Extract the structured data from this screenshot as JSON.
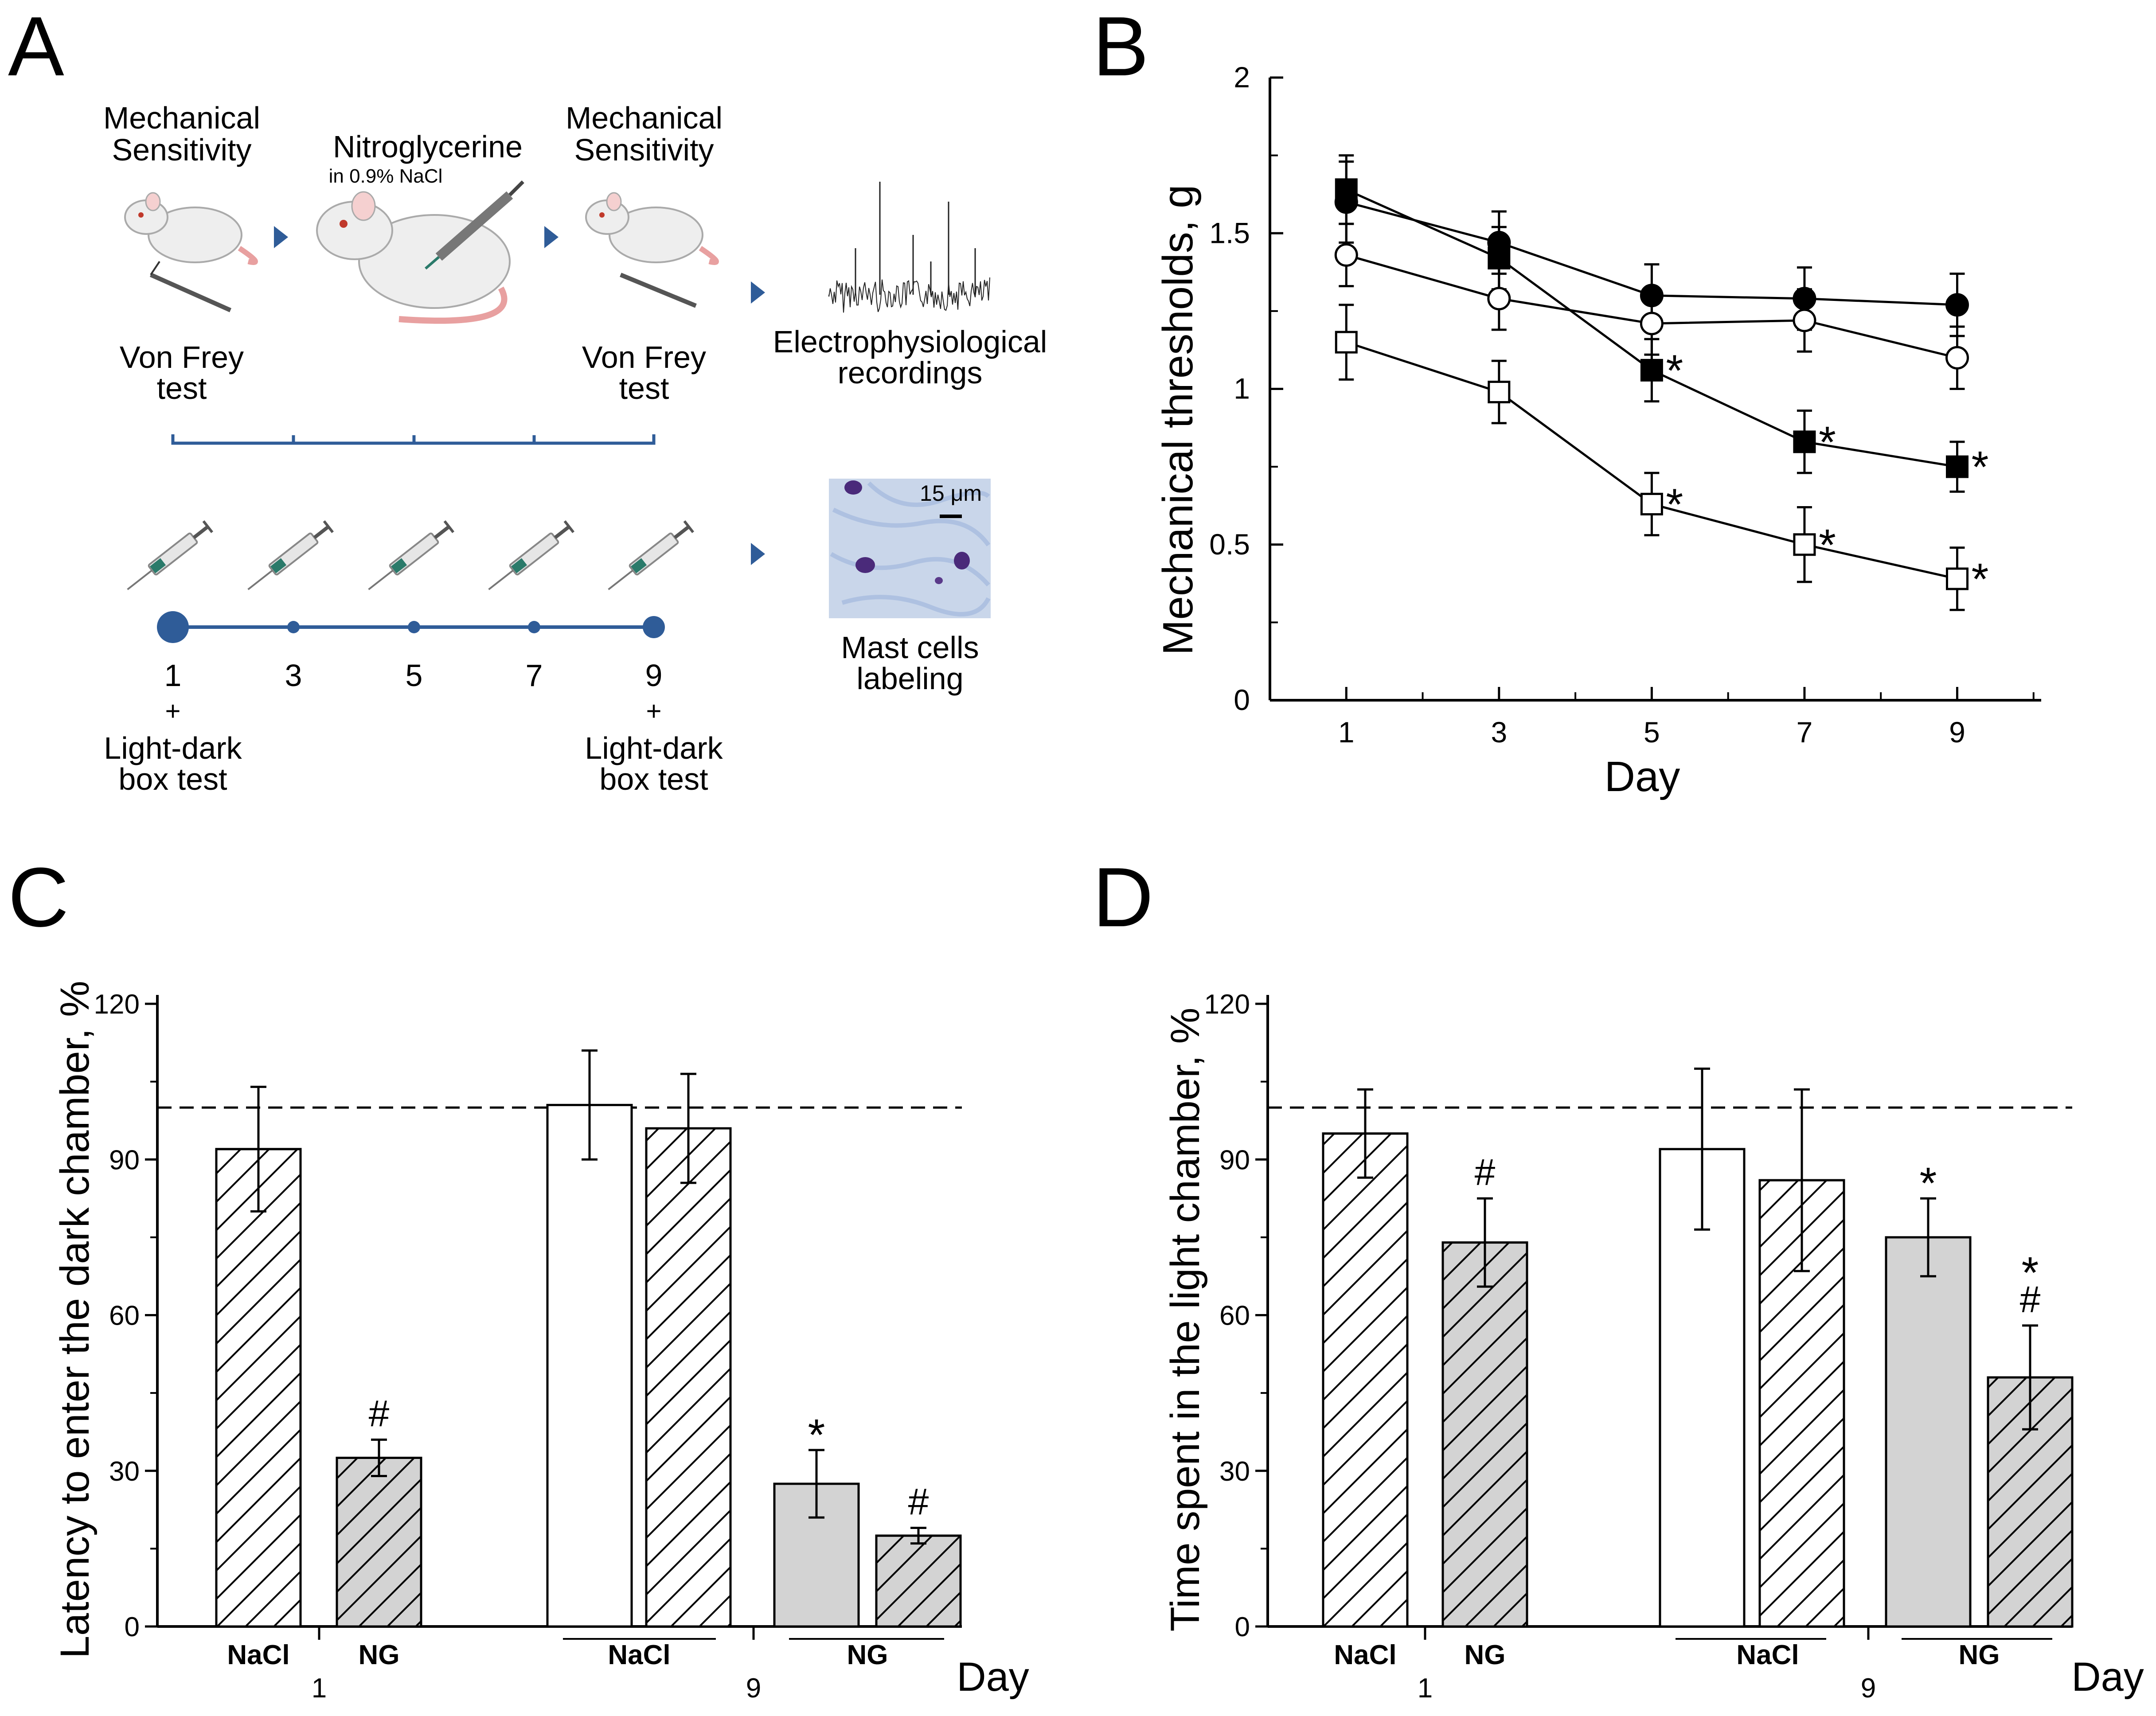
{
  "panels": {
    "A": "A",
    "B": "B",
    "C": "C",
    "D": "D"
  },
  "schematic": {
    "step1_title": [
      "Mechanical",
      "Sensitivity"
    ],
    "step1_caption": [
      "Von Frey",
      "test"
    ],
    "step2_title": "Nitroglycerine",
    "step2_subtitle": "in 0.9% NaCl",
    "step3_title": [
      "Mechanical",
      "Sensitivity"
    ],
    "step3_caption": [
      "Von Frey",
      "test"
    ],
    "step4_caption": [
      "Electrophysiological",
      "recordings"
    ],
    "timeline_days": [
      "1",
      "3",
      "5",
      "7",
      "9"
    ],
    "plus": "+",
    "lightdark_left": [
      "Light-dark",
      "box test"
    ],
    "lightdark_right": [
      "Light-dark",
      "box test"
    ],
    "scale_bar": "15 μm",
    "mast_caption": [
      "Mast cells",
      "labeling"
    ],
    "colors": {
      "accent": "#2f5c98",
      "rat_body": "#eeeeee",
      "rat_tail": "#e8a0a0",
      "stain_bg": "#c9d6ea",
      "mast_cell": "#4a2a7a"
    }
  },
  "chart_data": [
    {
      "panel": "B",
      "type": "line",
      "xlabel": "Day",
      "ylabel": "Mechanical thresholds, g",
      "x": [
        1,
        3,
        5,
        7,
        9
      ],
      "x_ticks": [
        "1",
        "3",
        "5",
        "7",
        "9"
      ],
      "ylim": [
        0,
        2
      ],
      "y_ticks": [
        "0",
        "0.5",
        "1",
        "1.5",
        "2"
      ],
      "series": [
        {
          "name": "filled circle",
          "marker": "circle",
          "fill": "#000000",
          "values": [
            1.6,
            1.47,
            1.3,
            1.29,
            1.27
          ],
          "errors": [
            0.13,
            0.1,
            0.1,
            0.1,
            0.1
          ],
          "stars": [
            "",
            "",
            "",
            "",
            ""
          ]
        },
        {
          "name": "open circle",
          "marker": "circle",
          "fill": "#ffffff",
          "values": [
            1.43,
            1.29,
            1.21,
            1.22,
            1.1
          ],
          "errors": [
            0.1,
            0.1,
            0.1,
            0.1,
            0.1
          ],
          "stars": [
            "",
            "",
            "",
            "",
            ""
          ]
        },
        {
          "name": "filled square",
          "marker": "square",
          "fill": "#000000",
          "values": [
            1.64,
            1.42,
            1.06,
            0.83,
            0.75
          ],
          "errors": [
            0.11,
            0.1,
            0.1,
            0.1,
            0.08
          ],
          "stars": [
            "",
            "",
            "*",
            "*",
            "*"
          ]
        },
        {
          "name": "open square",
          "marker": "square",
          "fill": "#ffffff",
          "values": [
            1.15,
            0.99,
            0.63,
            0.5,
            0.39
          ],
          "errors": [
            0.12,
            0.1,
            0.1,
            0.12,
            0.1
          ],
          "stars": [
            "",
            "",
            "*",
            "*",
            "*"
          ]
        }
      ]
    },
    {
      "panel": "C",
      "type": "bar",
      "ylabel": "Latency to enter the dark chamber, %",
      "xlabel": "Day",
      "ylim": [
        0,
        120
      ],
      "y_ticks": [
        "0",
        "30",
        "60",
        "90",
        "120"
      ],
      "reference_line": 100,
      "bars": [
        {
          "value": 92,
          "error": 12,
          "fill": "#ffffff",
          "hatch": true,
          "mark": ""
        },
        {
          "value": 32.5,
          "error": 3.5,
          "fill": "#d3d3d3",
          "hatch": true,
          "mark": "#"
        },
        {
          "value": 100.5,
          "error": 10.5,
          "fill": "#ffffff",
          "hatch": false,
          "mark": ""
        },
        {
          "value": 96,
          "error": 10.5,
          "fill": "#ffffff",
          "hatch": true,
          "mark": ""
        },
        {
          "value": 27.5,
          "error": 6.5,
          "fill": "#d3d3d3",
          "hatch": false,
          "mark": "*"
        },
        {
          "value": 17.5,
          "error": 1.5,
          "fill": "#d3d3d3",
          "hatch": true,
          "mark": "#"
        }
      ],
      "group_labels": [
        "NaCl",
        "NG",
        "NaCl",
        "NG"
      ],
      "day_labels": [
        "1",
        "9"
      ]
    },
    {
      "panel": "D",
      "type": "bar",
      "ylabel": "Time spent in the light chamber, %",
      "xlabel": "Day",
      "ylim": [
        0,
        120
      ],
      "y_ticks": [
        "0",
        "30",
        "60",
        "90",
        "120"
      ],
      "reference_line": 100,
      "bars": [
        {
          "value": 95,
          "error": 8.5,
          "fill": "#ffffff",
          "hatch": true,
          "mark": ""
        },
        {
          "value": 74,
          "error": 8.5,
          "fill": "#d3d3d3",
          "hatch": true,
          "mark": "#"
        },
        {
          "value": 92,
          "error": 15.5,
          "fill": "#ffffff",
          "hatch": false,
          "mark": ""
        },
        {
          "value": 86,
          "error": 17.5,
          "fill": "#ffffff",
          "hatch": true,
          "mark": ""
        },
        {
          "value": 75,
          "error": 7.5,
          "fill": "#d3d3d3",
          "hatch": false,
          "mark": "*"
        },
        {
          "value": 48,
          "error": 10,
          "fill": "#d3d3d3",
          "hatch": true,
          "mark": "*\n#"
        }
      ],
      "group_labels": [
        "NaCl",
        "NG",
        "NaCl",
        "NG"
      ],
      "day_labels": [
        "1",
        "9"
      ]
    }
  ]
}
